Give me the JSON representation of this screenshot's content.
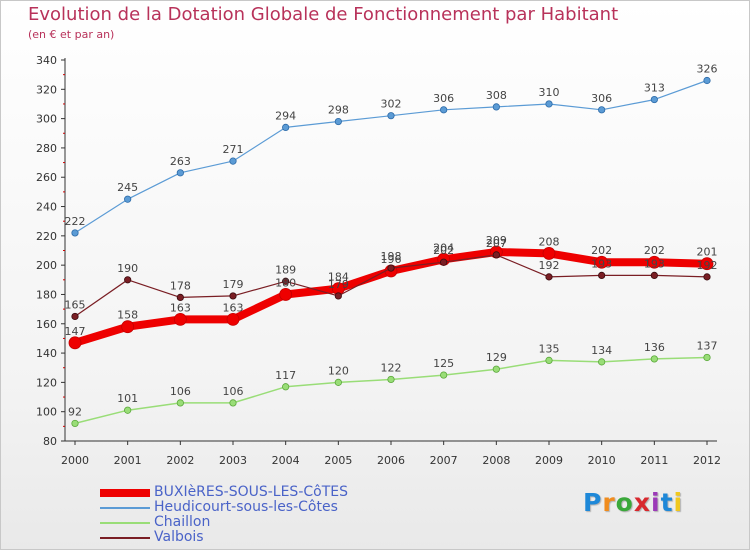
{
  "title": "Evolution de la Dotation Globale de Fonctionnement par Habitant",
  "subtitle": "(en € et par an)",
  "brand": {
    "text": "Proxiti",
    "colors": [
      "#1e88d8",
      "#f08c1e",
      "#3aa83a",
      "#d8282e",
      "#9c3ab8",
      "#1e88d8",
      "#f0c81e"
    ]
  },
  "colors": {
    "title": "#b8325a",
    "legend_text": "#4a63c8",
    "axis": "#333333",
    "grid_tick": "#cc0000"
  },
  "chart_data": {
    "type": "line",
    "x": [
      "2000",
      "2001",
      "2002",
      "2003",
      "2004",
      "2005",
      "2006",
      "2007",
      "2008",
      "2009",
      "2010",
      "2011",
      "2012"
    ],
    "ylim": [
      80,
      340
    ],
    "yticks": [
      80,
      100,
      120,
      140,
      160,
      180,
      200,
      220,
      240,
      260,
      280,
      300,
      320,
      340
    ],
    "grid": false,
    "legend_position": "bottom-left",
    "series": [
      {
        "name": "BUXIèRES-SOUS-LES-CôTES",
        "color": "#ee0000",
        "values": [
          147,
          158,
          163,
          163,
          180,
          184,
          196,
          204,
          209,
          208,
          202,
          202,
          201
        ]
      },
      {
        "name": "Heudicourt-sous-les-Côtes",
        "color": "#5b9bd5",
        "values": [
          222,
          245,
          263,
          271,
          294,
          298,
          302,
          306,
          308,
          310,
          306,
          313,
          326
        ]
      },
      {
        "name": "Chaillon",
        "color": "#99dd77",
        "values": [
          92,
          101,
          106,
          106,
          117,
          120,
          122,
          125,
          129,
          135,
          134,
          136,
          137
        ]
      },
      {
        "name": "Valbois",
        "color": "#7a1e24",
        "values": [
          165,
          190,
          178,
          179,
          189,
          179,
          198,
          202,
          207,
          192,
          193,
          193,
          192
        ]
      }
    ]
  }
}
